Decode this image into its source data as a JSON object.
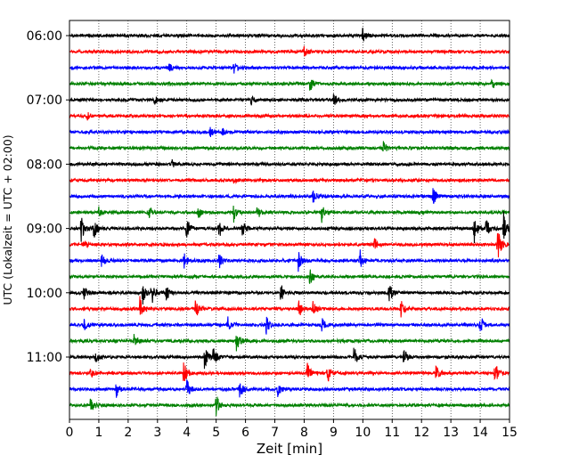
{
  "chart_data": {
    "type": "line",
    "title": "",
    "xlabel": "Zeit  [min]",
    "ylabel": "UTC (Lokalzeit = UTC + 02:00)",
    "xlim": [
      0,
      15
    ],
    "x_ticks": [
      "0",
      "1",
      "2",
      "3",
      "4",
      "5",
      "6",
      "7",
      "8",
      "9",
      "10",
      "11",
      "12",
      "13",
      "14",
      "15"
    ],
    "y_ticks": [
      {
        "label": "06:00",
        "trace": 0
      },
      {
        "label": "07:00",
        "trace": 4
      },
      {
        "label": "08:00",
        "trace": 8
      },
      {
        "label": "09:00",
        "trace": 12
      },
      {
        "label": "10:00",
        "trace": 16
      },
      {
        "label": "11:00",
        "trace": 20
      }
    ],
    "grid": "vertical dotted at each minute",
    "trace_interval_minutes": 15,
    "trace_colors": [
      "#000000",
      "#ff0000",
      "#0000ff",
      "#008000"
    ],
    "traces": [
      {
        "start": "06:00",
        "events": [
          [
            10.0,
            1.0
          ]
        ]
      },
      {
        "start": "06:15",
        "events": [
          [
            8.0,
            0.8
          ]
        ]
      },
      {
        "start": "06:30",
        "events": [
          [
            5.6,
            0.8
          ],
          [
            3.4,
            0.5
          ]
        ]
      },
      {
        "start": "06:45",
        "events": [
          [
            8.2,
            1.0
          ],
          [
            14.4,
            0.9
          ]
        ]
      },
      {
        "start": "07:00",
        "events": [
          [
            6.2,
            0.7
          ],
          [
            9.0,
            0.9
          ],
          [
            2.9,
            0.5
          ]
        ]
      },
      {
        "start": "07:15",
        "events": [
          [
            0.6,
            0.6
          ]
        ]
      },
      {
        "start": "07:30",
        "events": [
          [
            4.8,
            0.6
          ],
          [
            5.2,
            0.5
          ]
        ]
      },
      {
        "start": "07:45",
        "events": [
          [
            10.7,
            0.8
          ]
        ]
      },
      {
        "start": "08:00",
        "events": [
          [
            3.5,
            0.5
          ]
        ]
      },
      {
        "start": "08:15",
        "events": [
          [
            5.6,
            0.3
          ]
        ]
      },
      {
        "start": "08:30",
        "events": [
          [
            8.3,
            1.0
          ],
          [
            12.4,
            1.2
          ]
        ]
      },
      {
        "start": "08:45",
        "events": [
          [
            1.0,
            0.6
          ],
          [
            2.7,
            0.8
          ],
          [
            4.4,
            0.7
          ],
          [
            5.6,
            1.2
          ],
          [
            6.4,
            0.9
          ],
          [
            8.6,
            1.3
          ]
        ]
      },
      {
        "start": "09:00",
        "events": [
          [
            0.4,
            2.2
          ],
          [
            0.8,
            1.8
          ],
          [
            4.0,
            1.7
          ],
          [
            5.1,
            1.4
          ],
          [
            5.9,
            1.1
          ],
          [
            13.8,
            1.7
          ],
          [
            14.2,
            1.4
          ],
          [
            14.8,
            2.0
          ]
        ]
      },
      {
        "start": "09:15",
        "events": [
          [
            0.5,
            0.6
          ],
          [
            10.4,
            0.8
          ],
          [
            14.6,
            2.2
          ]
        ]
      },
      {
        "start": "09:30",
        "events": [
          [
            1.1,
            0.9
          ],
          [
            3.9,
            1.1
          ],
          [
            5.1,
            1.0
          ],
          [
            7.8,
            1.3
          ],
          [
            9.9,
            1.4
          ]
        ]
      },
      {
        "start": "09:45",
        "events": [
          [
            8.2,
            1.3
          ]
        ]
      },
      {
        "start": "10:00",
        "events": [
          [
            0.5,
            1.0
          ],
          [
            2.5,
            1.4
          ],
          [
            2.8,
            1.6
          ],
          [
            3.3,
            1.0
          ],
          [
            7.2,
            1.2
          ],
          [
            10.9,
            1.3
          ]
        ]
      },
      {
        "start": "10:15",
        "events": [
          [
            2.4,
            1.6
          ],
          [
            4.3,
            1.3
          ],
          [
            7.8,
            1.8
          ],
          [
            8.3,
            1.2
          ],
          [
            11.3,
            1.1
          ]
        ]
      },
      {
        "start": "10:30",
        "events": [
          [
            0.5,
            0.9
          ],
          [
            5.4,
            1.0
          ],
          [
            6.7,
            1.2
          ],
          [
            8.6,
            1.0
          ],
          [
            14.0,
            1.4
          ]
        ]
      },
      {
        "start": "10:45",
        "events": [
          [
            2.2,
            0.9
          ],
          [
            5.7,
            1.6
          ]
        ]
      },
      {
        "start": "11:00",
        "events": [
          [
            0.9,
            0.9
          ],
          [
            4.6,
            1.6
          ],
          [
            4.9,
            1.2
          ],
          [
            9.7,
            1.5
          ],
          [
            11.4,
            1.1
          ]
        ]
      },
      {
        "start": "11:15",
        "events": [
          [
            0.7,
            0.8
          ],
          [
            3.9,
            1.7
          ],
          [
            8.1,
            1.4
          ],
          [
            8.8,
            1.3
          ],
          [
            12.5,
            1.0
          ],
          [
            14.5,
            1.5
          ]
        ]
      },
      {
        "start": "11:30",
        "events": [
          [
            1.6,
            1.0
          ],
          [
            4.0,
            1.3
          ],
          [
            5.8,
            1.2
          ],
          [
            7.1,
            1.1
          ]
        ]
      },
      {
        "start": "11:45",
        "events": [
          [
            0.7,
            1.5
          ],
          [
            5.0,
            1.4
          ]
        ]
      }
    ]
  }
}
